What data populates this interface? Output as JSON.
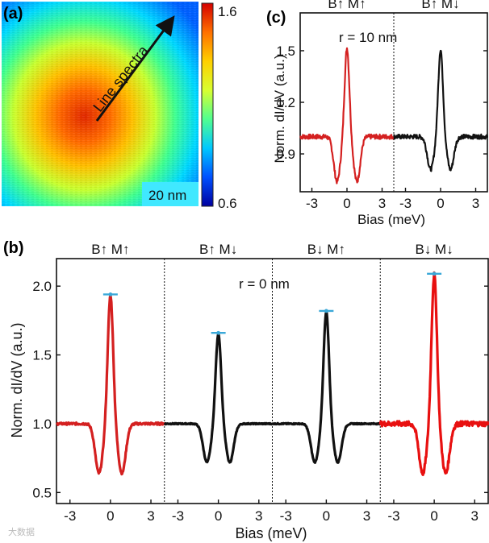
{
  "panel_a": {
    "label": "(a)",
    "arrow_label": "Line spectra",
    "scalebar_label": "20 nm",
    "colorbar_max": "1.6",
    "colorbar_min": "0.6",
    "colormap": [
      "#0000a0",
      "#0050ff",
      "#00c8ff",
      "#50ff90",
      "#d8ff30",
      "#ffd000",
      "#ff7000",
      "#d40000"
    ]
  },
  "chart_data": [
    {
      "id": "c",
      "type": "line",
      "panel_label": "(c)",
      "annotation": "r = 10 nm",
      "xlabel": "Bias (meV)",
      "ylabel": "Norm. dI/dV (a.u.)",
      "segments": [
        {
          "title": "B↑ M↑",
          "color": "#d42020",
          "baseline": 1.0,
          "peak": 1.52,
          "dip": 0.74,
          "noise": 0.014,
          "xlim": [
            -4,
            4
          ],
          "xticks": [
            "-3",
            "0",
            "3"
          ]
        },
        {
          "title": "B↑ M↓",
          "color": "#111111",
          "baseline": 1.0,
          "peak": 1.51,
          "dip": 0.81,
          "noise": 0.013,
          "xlim": [
            -4,
            4
          ],
          "xticks": [
            "-3",
            "0",
            "3"
          ]
        }
      ],
      "ylim": [
        0.68,
        1.72
      ],
      "yticks": [
        "0.9",
        "1.2",
        "1.5"
      ]
    },
    {
      "id": "b",
      "type": "line",
      "panel_label": "(b)",
      "annotation": "r = 0 nm",
      "xlabel": "Bias (meV)",
      "ylabel": "Norm. dI/dV (a.u.)",
      "segments": [
        {
          "title": "B↑ M↑",
          "color": "#d42020",
          "baseline": 1.0,
          "peak": 1.94,
          "dip": 0.64,
          "noise": 0.008,
          "xlim": [
            -4,
            4
          ],
          "xticks": [
            "-3",
            "0",
            "3"
          ]
        },
        {
          "title": "B↑ M↓",
          "color": "#111111",
          "baseline": 1.0,
          "peak": 1.66,
          "dip": 0.72,
          "noise": 0.004,
          "xlim": [
            -4,
            4
          ],
          "xticks": [
            "-3",
            "0",
            "3"
          ]
        },
        {
          "title": "B↓ M↑",
          "color": "#111111",
          "baseline": 1.0,
          "peak": 1.82,
          "dip": 0.72,
          "noise": 0.004,
          "xlim": [
            -4,
            4
          ],
          "xticks": [
            "-3",
            "0",
            "3"
          ]
        },
        {
          "title": "B↓ M↓",
          "color": "#e81010",
          "baseline": 1.0,
          "peak": 2.09,
          "dip": 0.64,
          "noise": 0.018,
          "xlim": [
            -4,
            4
          ],
          "xticks": [
            "-3",
            "0",
            "3"
          ]
        }
      ],
      "ylim": [
        0.42,
        2.2
      ],
      "yticks": [
        "0.5",
        "1.0",
        "1.5",
        "2.0"
      ]
    }
  ],
  "watermark": "大数据"
}
